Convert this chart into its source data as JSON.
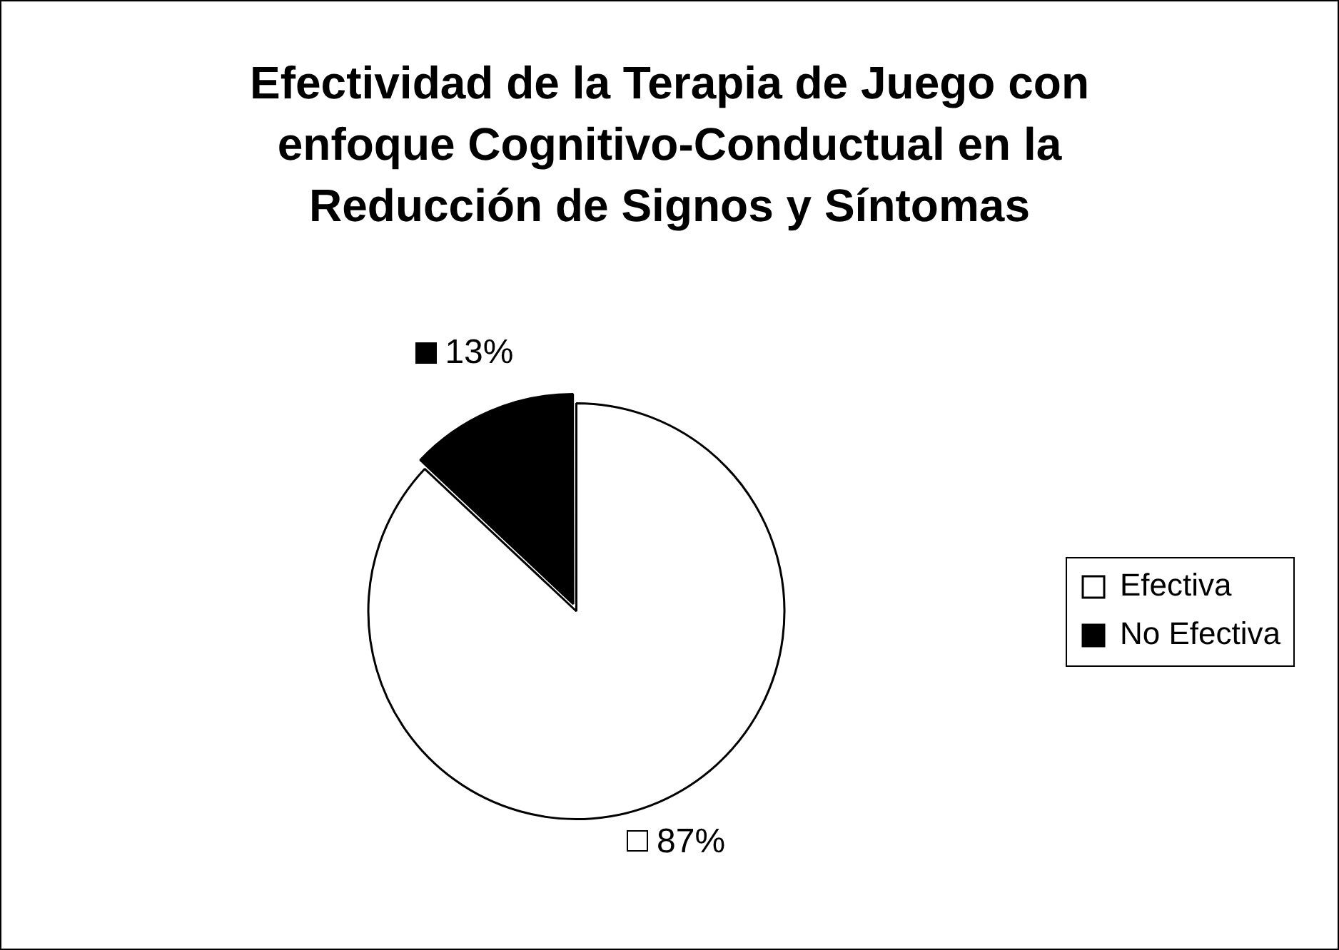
{
  "chart_data": {
    "type": "pie",
    "title": "Efectividad de la Terapia de Juego con enfoque Cognitivo-Conductual en la Reducción de Signos y Síntomas",
    "categories": [
      "Efectiva",
      "No Efectiva"
    ],
    "values": [
      87,
      13
    ],
    "value_labels": [
      "87%",
      "13%"
    ],
    "colors": [
      "#ffffff",
      "#000000"
    ],
    "legend": "right"
  }
}
